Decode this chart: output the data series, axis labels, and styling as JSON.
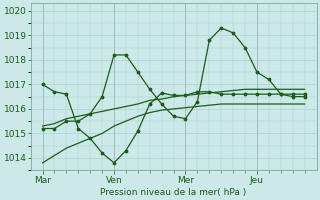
{
  "background_color": "#cce8e8",
  "grid_color": "#aacccc",
  "line_color": "#1a5e1a",
  "title": "Pression niveau de la mer( hPa )",
  "ylim": [
    1013.5,
    1020.3
  ],
  "yticks": [
    1014,
    1015,
    1016,
    1017,
    1018,
    1019,
    1020
  ],
  "xtick_labels": [
    "Mar",
    "Ven",
    "Mer",
    "Jeu"
  ],
  "xtick_positions": [
    0,
    3,
    6,
    9
  ],
  "xlim": [
    -0.5,
    11.5
  ],
  "minor_xticks": [
    0.5,
    1.0,
    1.5,
    2.0,
    2.5,
    3.5,
    4.0,
    4.5,
    5.0,
    5.5,
    6.5,
    7.0,
    7.5,
    8.0,
    8.5,
    9.5,
    10.0,
    10.5,
    11.0
  ],
  "series_spike_x": [
    0,
    0.5,
    1.0,
    1.5,
    2.0,
    2.5,
    3.0,
    3.5,
    4.0,
    4.5,
    5.0,
    5.5,
    6.0,
    6.5,
    7.0,
    7.5,
    8.0,
    8.5,
    9.0,
    9.5,
    10.0,
    10.5,
    11.0
  ],
  "series_spike_y": [
    1015.2,
    1015.2,
    1015.5,
    1015.5,
    1015.8,
    1016.5,
    1018.2,
    1018.2,
    1017.5,
    1016.8,
    1016.2,
    1015.7,
    1015.6,
    1016.3,
    1018.8,
    1019.3,
    1019.1,
    1018.5,
    1017.5,
    1017.2,
    1016.6,
    1016.5,
    1016.5
  ],
  "series_upper_x": [
    0,
    0.5,
    1.0,
    1.5,
    2.0,
    2.5,
    3.0,
    3.5,
    4.0,
    4.5,
    5.0,
    5.5,
    6.0,
    6.5,
    7.0,
    7.5,
    8.0,
    8.5,
    9.0,
    9.5,
    10.0,
    10.5,
    11.0
  ],
  "series_upper_y": [
    1017.0,
    1016.7,
    1016.6,
    1015.2,
    1014.8,
    1014.2,
    1013.8,
    1014.3,
    1015.1,
    1016.2,
    1016.65,
    1016.55,
    1016.55,
    1016.7,
    1016.7,
    1016.6,
    1016.6,
    1016.6,
    1016.6,
    1016.6,
    1016.6,
    1016.6,
    1016.6
  ],
  "series_mid_x": [
    0,
    0.5,
    1.0,
    1.5,
    2.0,
    2.5,
    3.0,
    3.5,
    4.0,
    4.5,
    5.0,
    5.5,
    6.0,
    6.5,
    7.0,
    7.5,
    8.0,
    8.5,
    9.0,
    9.5,
    10.0,
    10.5,
    11.0
  ],
  "series_mid_y": [
    1015.3,
    1015.4,
    1015.6,
    1015.7,
    1015.8,
    1015.9,
    1016.0,
    1016.1,
    1016.2,
    1016.35,
    1016.4,
    1016.5,
    1016.55,
    1016.6,
    1016.65,
    1016.7,
    1016.75,
    1016.8,
    1016.8,
    1016.8,
    1016.8,
    1016.8,
    1016.8
  ],
  "series_lower_x": [
    0,
    0.5,
    1.0,
    1.5,
    2.0,
    2.5,
    3.0,
    3.5,
    4.0,
    4.5,
    5.0,
    5.5,
    6.0,
    6.5,
    7.0,
    7.5,
    8.0,
    8.5,
    9.0,
    9.5,
    10.0,
    10.5,
    11.0
  ],
  "series_lower_y": [
    1013.8,
    1014.1,
    1014.4,
    1014.6,
    1014.8,
    1015.0,
    1015.3,
    1015.5,
    1015.7,
    1015.85,
    1015.95,
    1016.0,
    1016.05,
    1016.1,
    1016.15,
    1016.2,
    1016.2,
    1016.2,
    1016.2,
    1016.2,
    1016.2,
    1016.2,
    1016.2
  ],
  "figsize": [
    3.2,
    2.0
  ],
  "dpi": 100
}
